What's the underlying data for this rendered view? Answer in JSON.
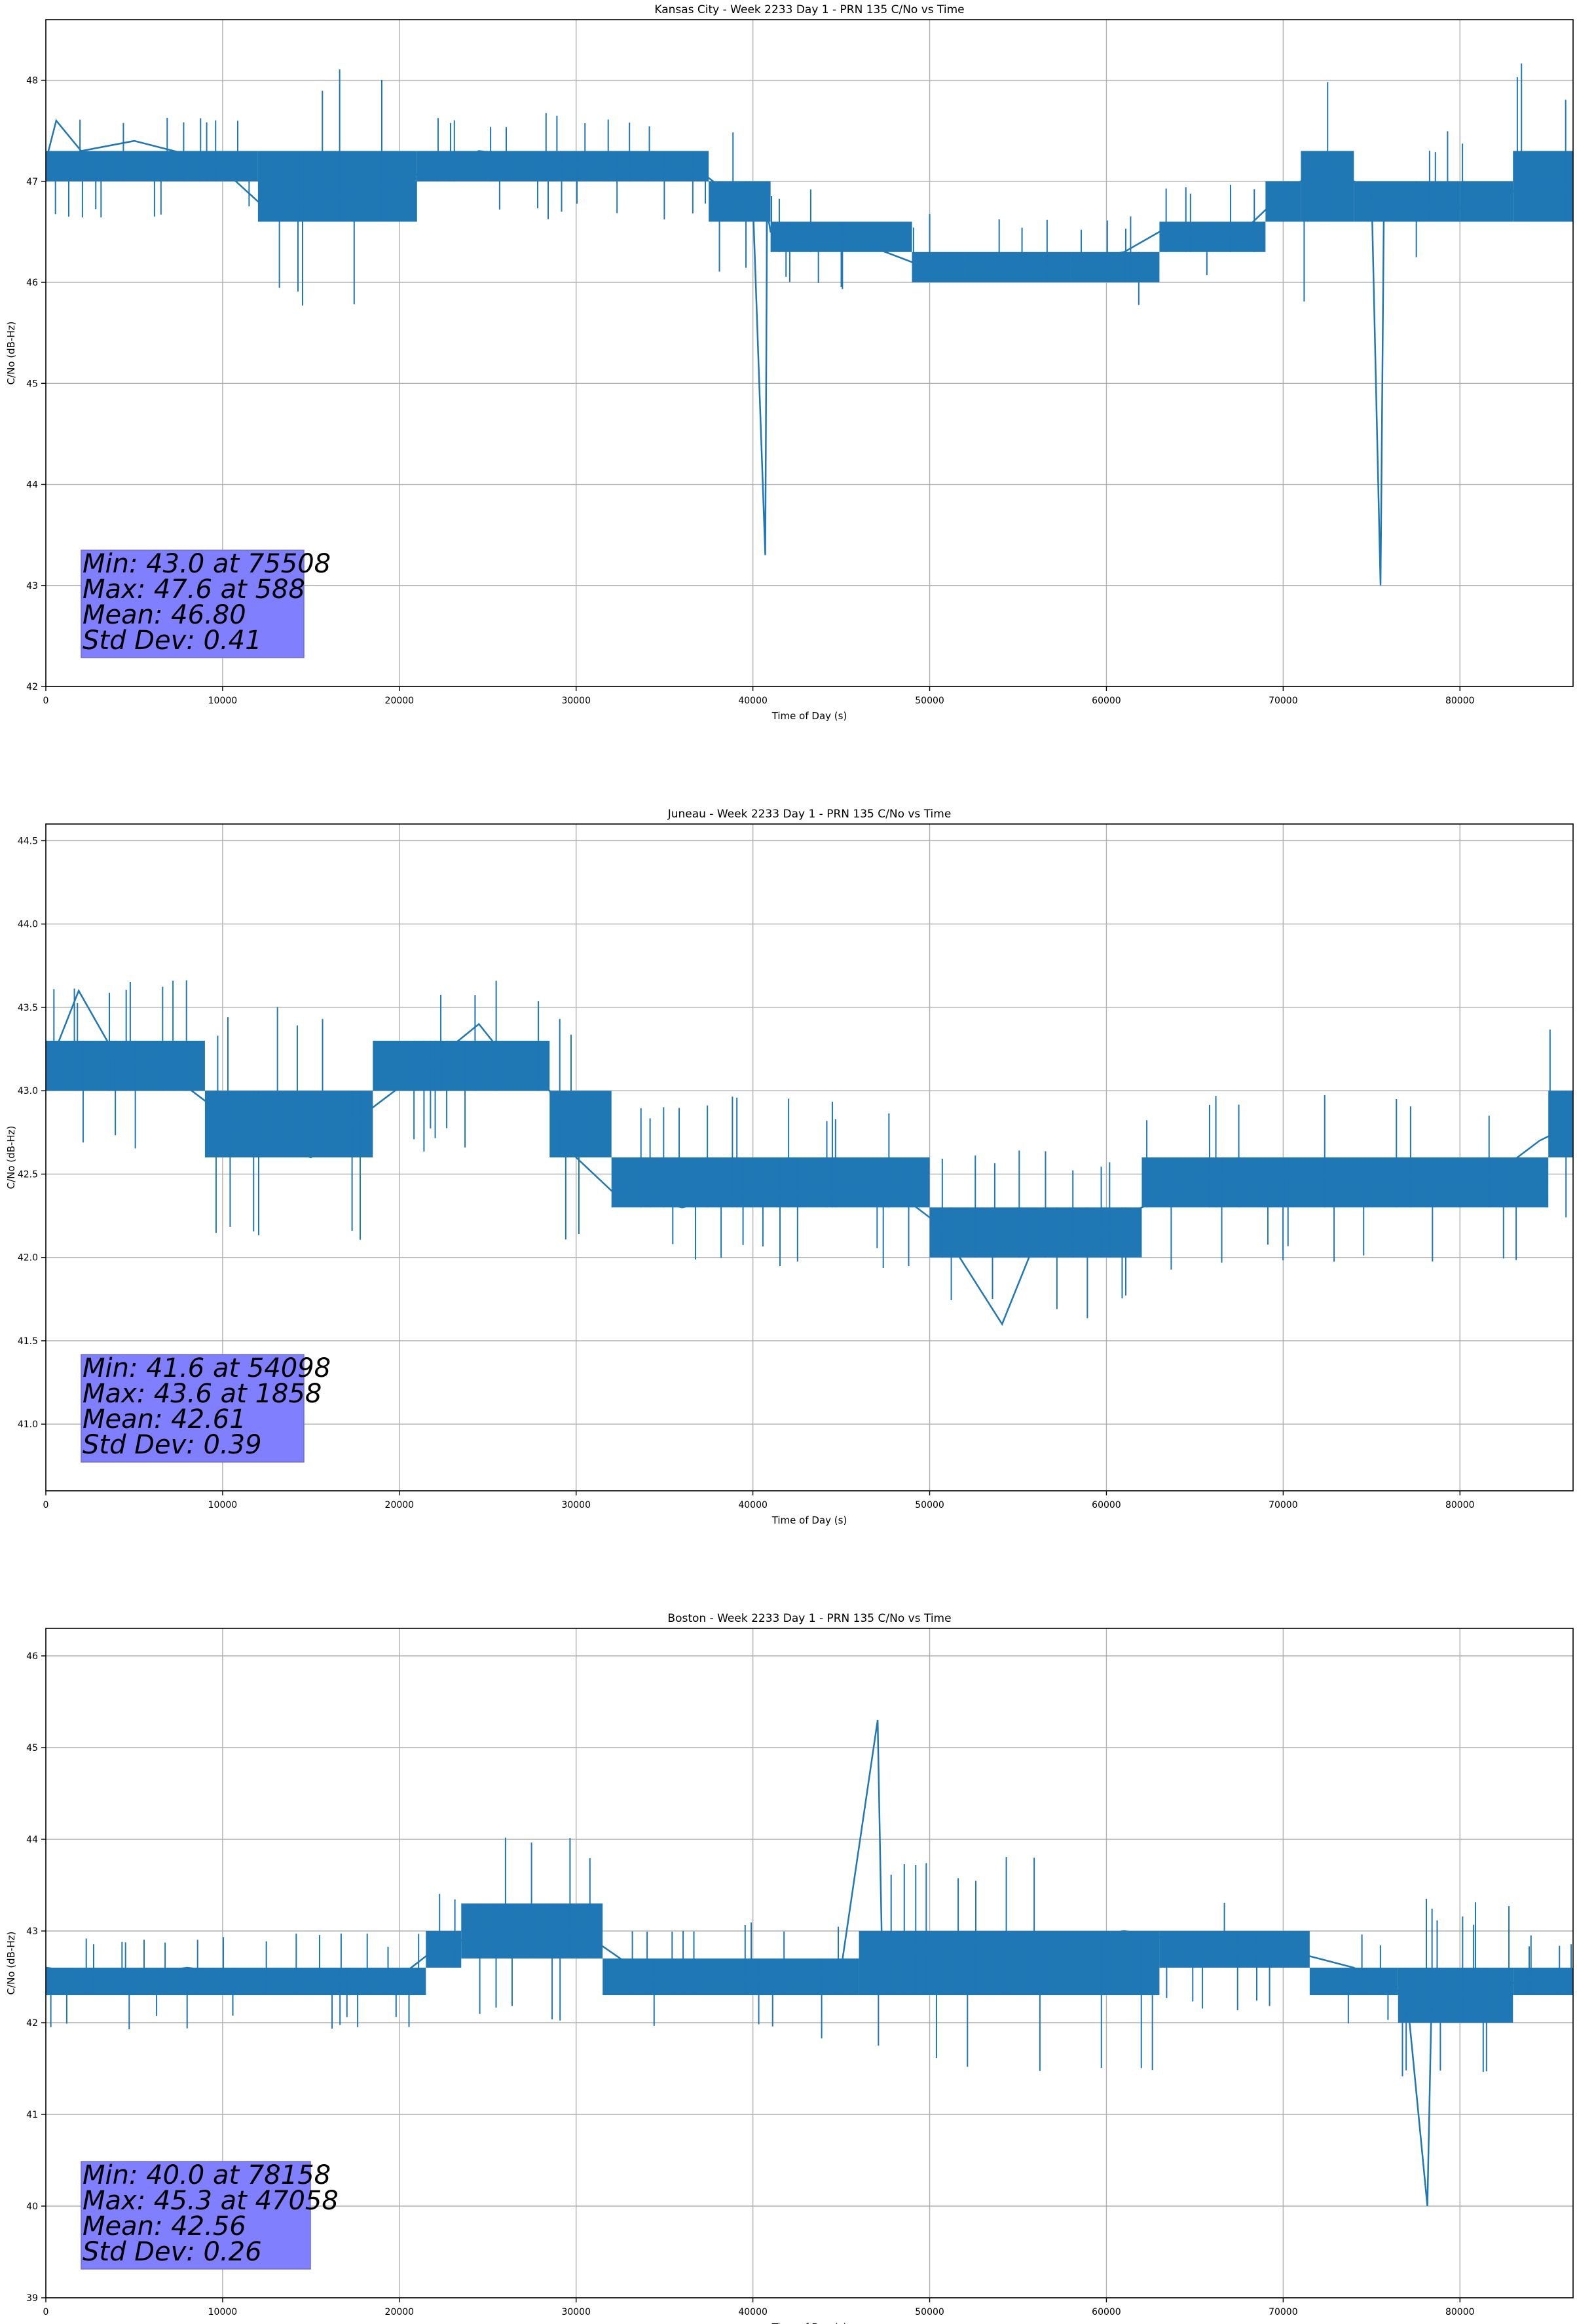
{
  "colors": {
    "line": "#1f77b4",
    "grid": "#b0b0b0",
    "stats_box": "#8080ff",
    "axes": "#000000"
  },
  "chart_data": [
    {
      "type": "line",
      "title": "Kansas City - Week 2233 Day 1 - PRN 135 C/No vs Time",
      "xlabel": "Time of Day (s)",
      "ylabel": "C/No (dB-Hz)",
      "xlim": [
        0,
        86400
      ],
      "ylim": [
        42.0,
        48.6
      ],
      "xticks": [
        0,
        10000,
        20000,
        30000,
        40000,
        50000,
        60000,
        70000,
        80000
      ],
      "xtick_labels": [
        "0",
        "10000",
        "20000",
        "30000",
        "40000",
        "50000",
        "60000",
        "70000",
        "80000"
      ],
      "yticks": [
        42,
        43,
        44,
        45,
        46,
        47,
        48
      ],
      "ytick_labels": [
        "42",
        "43",
        "44",
        "45",
        "46",
        "47",
        "48"
      ],
      "grid": true,
      "series": [
        {
          "x": [
            0,
            588,
            2000,
            5000,
            9500,
            12000,
            15000,
            20000,
            24500,
            29000,
            33000,
            37000,
            38500,
            40000,
            40700,
            40800,
            41000,
            43000,
            46000,
            49000,
            50000,
            53000,
            55800,
            58000,
            61000,
            63000,
            65500,
            67700,
            69500,
            71000,
            73000,
            75000,
            75508,
            75700,
            76500,
            79000,
            82000,
            84000,
            86400
          ],
          "y": [
            47.2,
            47.6,
            47.3,
            47.4,
            47.2,
            46.8,
            46.8,
            47.0,
            47.3,
            47.2,
            47.1,
            47.1,
            46.9,
            46.8,
            43.3,
            46.7,
            46.5,
            46.5,
            46.4,
            46.2,
            46.1,
            46.2,
            46.1,
            46.2,
            46.3,
            46.5,
            46.5,
            46.5,
            46.8,
            47.0,
            47.1,
            46.9,
            43.0,
            46.8,
            46.8,
            46.7,
            46.8,
            47.0,
            46.9
          ],
          "band": [
            [
              0,
              47.0,
              47.3
            ],
            [
              12000,
              46.6,
              47.3
            ],
            [
              21000,
              47.0,
              47.3
            ],
            [
              37500,
              46.6,
              47.0
            ],
            [
              41000,
              46.3,
              46.6
            ],
            [
              49000,
              46.0,
              46.3
            ],
            [
              52000,
              46.0,
              46.3
            ],
            [
              58000,
              46.0,
              46.3
            ],
            [
              63000,
              46.3,
              46.6
            ],
            [
              69000,
              46.6,
              47.0
            ],
            [
              71000,
              46.6,
              47.3
            ],
            [
              74000,
              46.6,
              47.0
            ],
            [
              80000,
              46.6,
              47.0
            ],
            [
              83000,
              46.6,
              47.3
            ],
            [
              86400,
              46.6,
              47.0
            ]
          ]
        }
      ],
      "stats": [
        "Min: 43.0 at 75508",
        "Max: 47.6 at 588",
        "Mean: 46.80",
        "Std Dev: 0.41"
      ]
    },
    {
      "type": "line",
      "title": "Juneau - Week 2233 Day 1 - PRN 135 C/No vs Time",
      "xlabel": "Time of Day (s)",
      "ylabel": "C/No (dB-Hz)",
      "xlim": [
        0,
        86400
      ],
      "ylim": [
        40.6,
        44.6
      ],
      "xticks": [
        0,
        10000,
        20000,
        30000,
        40000,
        50000,
        60000,
        70000,
        80000
      ],
      "xtick_labels": [
        "0",
        "10000",
        "20000",
        "30000",
        "40000",
        "50000",
        "60000",
        "70000",
        "80000"
      ],
      "yticks": [
        41.0,
        41.5,
        42.0,
        42.5,
        43.0,
        43.5,
        44.0,
        44.5
      ],
      "ytick_labels": [
        "41.0",
        "41.5",
        "42.0",
        "42.5",
        "43.0",
        "43.5",
        "44.0",
        "44.5"
      ],
      "grid": true,
      "series": [
        {
          "x": [
            0,
            1858,
            4000,
            7000,
            9500,
            12000,
            15000,
            18500,
            21000,
            24500,
            26000,
            28500,
            30000,
            32000,
            36000,
            40000,
            44000,
            48000,
            50500,
            54098,
            56000,
            59000,
            62000,
            66000,
            70000,
            74000,
            78000,
            82000,
            84500,
            86400
          ],
          "y": [
            43.1,
            43.6,
            43.2,
            43.1,
            42.9,
            42.7,
            42.6,
            42.9,
            43.1,
            43.4,
            43.2,
            43.0,
            42.6,
            42.4,
            42.3,
            42.4,
            42.4,
            42.4,
            42.2,
            41.6,
            42.1,
            42.1,
            42.3,
            42.5,
            42.5,
            42.5,
            42.5,
            42.5,
            42.7,
            42.8
          ],
          "band": [
            [
              0,
              43.0,
              43.3
            ],
            [
              9000,
              42.6,
              43.0
            ],
            [
              18500,
              43.0,
              43.3
            ],
            [
              28500,
              42.6,
              43.0
            ],
            [
              32000,
              42.3,
              42.6
            ],
            [
              50000,
              42.0,
              42.3
            ],
            [
              62000,
              42.3,
              42.6
            ],
            [
              85000,
              42.6,
              43.0
            ],
            [
              86400,
              42.6,
              43.0
            ]
          ]
        }
      ],
      "stats": [
        "Min: 41.6 at 54098",
        "Max: 43.6 at 1858",
        "Mean: 42.61",
        "Std Dev: 0.39"
      ]
    },
    {
      "type": "line",
      "title": "Boston - Week 2233 Day 1 - PRN 135 C/No vs Time",
      "xlabel": "Time of Day (s)",
      "ylabel": "C/No (dB-Hz)",
      "xlim": [
        0,
        86400
      ],
      "ylim": [
        39.0,
        46.3
      ],
      "xticks": [
        0,
        10000,
        20000,
        30000,
        40000,
        50000,
        60000,
        70000,
        80000
      ],
      "xtick_labels": [
        "0",
        "10000",
        "20000",
        "30000",
        "40000",
        "50000",
        "60000",
        "70000",
        "80000"
      ],
      "yticks": [
        39,
        40,
        41,
        42,
        43,
        44,
        45,
        46
      ],
      "ytick_labels": [
        "39",
        "40",
        "41",
        "42",
        "43",
        "44",
        "45",
        "46"
      ],
      "grid": true,
      "series": [
        {
          "x": [
            0,
            4000,
            8000,
            12000,
            16000,
            20000,
            22000,
            25000,
            28000,
            31000,
            34000,
            38000,
            42000,
            45000,
            47058,
            47300,
            50000,
            54000,
            58000,
            61000,
            64000,
            67000,
            70000,
            74000,
            77000,
            78158,
            78400,
            81000,
            84000,
            86400
          ],
          "y": [
            42.6,
            42.5,
            42.6,
            42.5,
            42.5,
            42.5,
            42.8,
            43.0,
            43.1,
            42.9,
            42.5,
            42.5,
            42.5,
            42.6,
            45.3,
            42.8,
            42.8,
            42.9,
            42.9,
            43.0,
            42.9,
            42.8,
            42.8,
            42.6,
            42.3,
            40.0,
            42.3,
            42.3,
            42.5,
            42.5
          ],
          "band": [
            [
              0,
              42.3,
              42.6
            ],
            [
              21500,
              42.6,
              43.0
            ],
            [
              23500,
              42.7,
              43.3
            ],
            [
              31500,
              42.3,
              42.7
            ],
            [
              46000,
              42.3,
              43.0
            ],
            [
              63000,
              42.6,
              43.0
            ],
            [
              71500,
              42.3,
              42.6
            ],
            [
              76500,
              42.0,
              42.6
            ],
            [
              83000,
              42.3,
              42.6
            ],
            [
              86400,
              42.3,
              42.6
            ]
          ]
        }
      ],
      "stats": [
        "Min: 40.0 at 78158",
        "Max: 45.3 at 47058",
        "Mean: 42.56",
        "Std Dev: 0.26"
      ]
    }
  ]
}
